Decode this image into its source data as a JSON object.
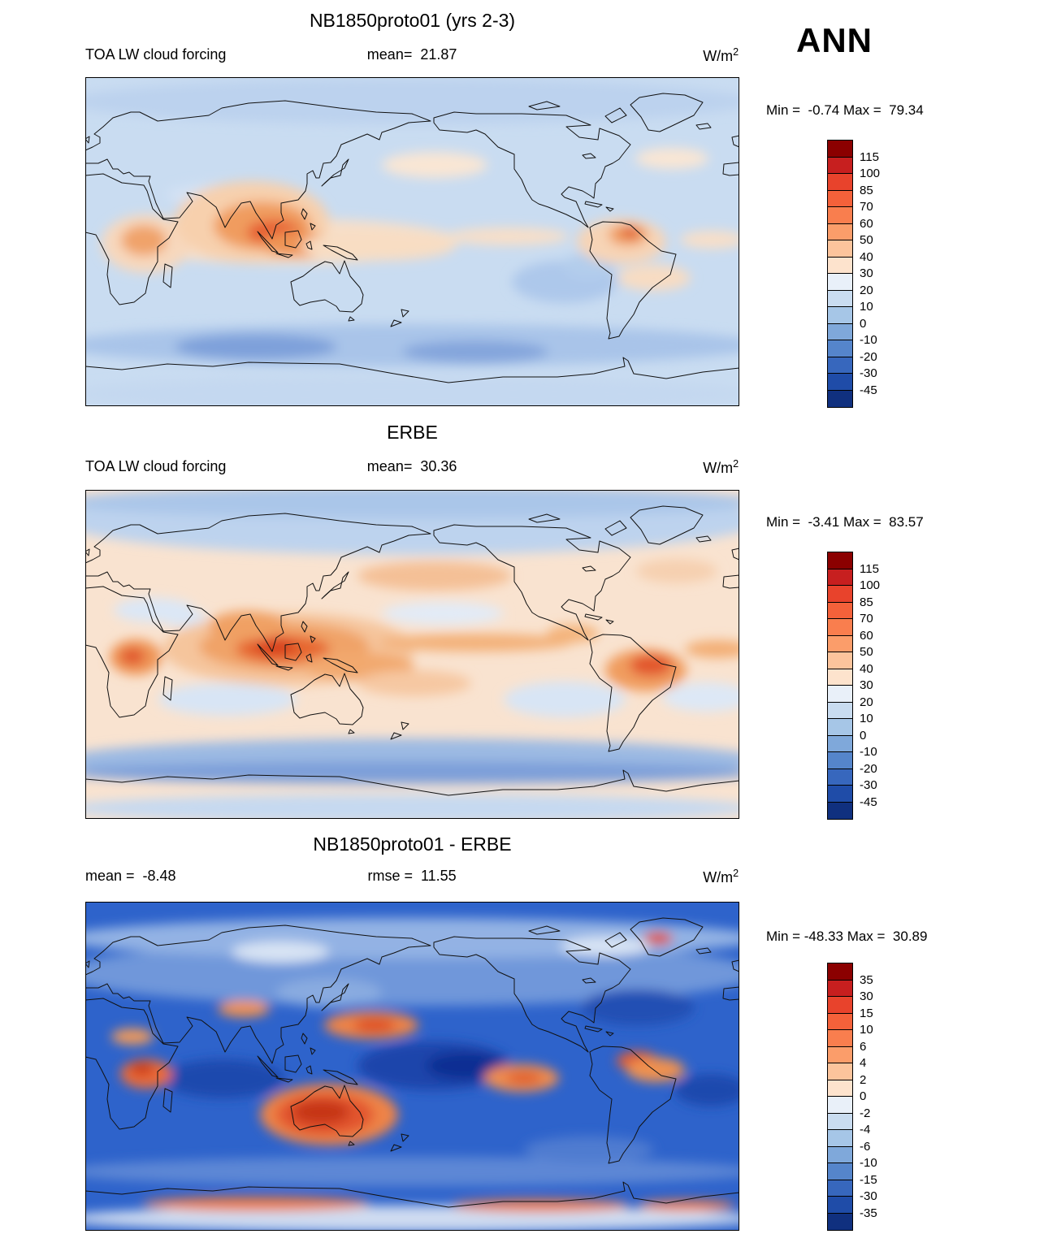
{
  "page": {
    "season_label": "ANN"
  },
  "panels": [
    {
      "id": "model",
      "title": "NB1850proto01 (yrs 2-3)",
      "left_label": "TOA LW cloud forcing",
      "center_label": "mean=  21.87",
      "units": "W/m",
      "units_exp": "2",
      "stats": "Min =  -0.74 Max =  79.34",
      "colorbar": {
        "labels": [
          "115",
          "100",
          "85",
          "70",
          "60",
          "50",
          "40",
          "30",
          "20",
          "10",
          "0",
          "-10",
          "-20",
          "-30",
          "-45"
        ],
        "colors": [
          "#8b0000",
          "#c71f1f",
          "#e8432c",
          "#f4613a",
          "#f97e4e",
          "#fb9d6a",
          "#fcc49c",
          "#fde3cd",
          "#e9f0f9",
          "#c9dcf0",
          "#a6c6e7",
          "#7fa8da",
          "#5585cb",
          "#3767bd",
          "#1f4ca8",
          "#10307f"
        ]
      },
      "map": {
        "base": "#c9dcf1",
        "blobs": [
          [
            400,
            30,
            420,
            28,
            "#bcd2ee"
          ],
          [
            400,
            390,
            420,
            22,
            "#c4d8f0"
          ],
          [
            400,
            330,
            430,
            26,
            "#a9c4e9"
          ],
          [
            210,
            332,
            100,
            16,
            "#7ea0da"
          ],
          [
            480,
            338,
            90,
            14,
            "#84a5dc"
          ],
          [
            590,
            252,
            65,
            26,
            "#adc8eb"
          ],
          [
            620,
            232,
            32,
            16,
            "#b3cdec"
          ],
          [
            160,
            145,
            60,
            14,
            "#d4e2f4"
          ],
          [
            250,
            202,
            210,
            28,
            "#f7dfc9"
          ],
          [
            75,
            205,
            55,
            36,
            "#f7d8bd"
          ],
          [
            72,
            201,
            28,
            19,
            "#f0a36a"
          ],
          [
            205,
            178,
            95,
            50,
            "#f7d0ad"
          ],
          [
            218,
            183,
            60,
            30,
            "#f09c5f"
          ],
          [
            232,
            191,
            33,
            15,
            "#e65f31"
          ],
          [
            262,
            206,
            45,
            16,
            "#ef9455"
          ],
          [
            360,
            208,
            95,
            18,
            "#f8ddc3"
          ],
          [
            520,
            196,
            75,
            11,
            "#f8dfc8"
          ],
          [
            660,
            202,
            55,
            28,
            "#f7d4b6"
          ],
          [
            668,
            194,
            24,
            13,
            "#ef9a5c"
          ],
          [
            671,
            191,
            10,
            6,
            "#dd4f2a"
          ],
          [
            700,
            247,
            45,
            16,
            "#f8dcc2"
          ],
          [
            772,
            200,
            40,
            11,
            "#f8dfc8"
          ],
          [
            430,
            108,
            65,
            16,
            "#f9e6d4"
          ],
          [
            722,
            100,
            45,
            13,
            "#f9e6d4"
          ]
        ]
      }
    },
    {
      "id": "obs",
      "title": "ERBE",
      "left_label": "TOA LW cloud forcing",
      "center_label": "mean=  30.36",
      "units": "W/m",
      "units_exp": "2",
      "stats": "Min =  -3.41 Max =  83.57",
      "colorbar": {
        "labels": [
          "115",
          "100",
          "85",
          "70",
          "60",
          "50",
          "40",
          "30",
          "20",
          "10",
          "0",
          "-10",
          "-20",
          "-30",
          "-45"
        ],
        "colors": [
          "#8b0000",
          "#c71f1f",
          "#e8432c",
          "#f4613a",
          "#f97e4e",
          "#fb9d6a",
          "#fcc49c",
          "#fde3cd",
          "#e9f0f9",
          "#c9dcf0",
          "#a6c6e7",
          "#7fa8da",
          "#5585cb",
          "#3767bd",
          "#1f4ca8",
          "#10307f"
        ]
      },
      "map": {
        "base": "#f9e3d0",
        "blobs": [
          [
            400,
            38,
            430,
            42,
            "#bdd3ee"
          ],
          [
            400,
            15,
            430,
            20,
            "#aac6e9"
          ],
          [
            400,
            332,
            430,
            26,
            "#9cbae3"
          ],
          [
            400,
            348,
            430,
            14,
            "#7d9fd9"
          ],
          [
            400,
            392,
            430,
            18,
            "#c6d9f0"
          ],
          [
            175,
            258,
            85,
            20,
            "#d8e5f5"
          ],
          [
            590,
            258,
            75,
            22,
            "#d8e5f5"
          ],
          [
            765,
            255,
            55,
            18,
            "#dde8f6"
          ],
          [
            440,
            152,
            75,
            14,
            "#e2ebf7"
          ],
          [
            85,
            148,
            50,
            15,
            "#dbe7f6"
          ],
          [
            122,
            158,
            28,
            11,
            "#dbe7f6"
          ],
          [
            250,
            196,
            155,
            45,
            "#f5c59c"
          ],
          [
            245,
            193,
            105,
            30,
            "#f0a368"
          ],
          [
            243,
            196,
            58,
            17,
            "#e6662f"
          ],
          [
            233,
            193,
            26,
            10,
            "#d8401f"
          ],
          [
            62,
            206,
            32,
            22,
            "#ef9556"
          ],
          [
            58,
            205,
            15,
            10,
            "#e0552c"
          ],
          [
            200,
            167,
            48,
            18,
            "#f0a064"
          ],
          [
            335,
            217,
            70,
            17,
            "#f2a96e"
          ],
          [
            405,
            238,
            70,
            16,
            "#f6c8a2"
          ],
          [
            480,
            188,
            120,
            11,
            "#f3b078"
          ],
          [
            690,
            222,
            50,
            26,
            "#f09c5e"
          ],
          [
            696,
            216,
            26,
            13,
            "#e2542b"
          ],
          [
            778,
            196,
            40,
            11,
            "#f3ae74"
          ],
          [
            600,
            177,
            32,
            11,
            "#f4b47c"
          ],
          [
            430,
            106,
            95,
            18,
            "#f4c096"
          ],
          [
            728,
            100,
            50,
            15,
            "#f6d0b0"
          ]
        ]
      }
    },
    {
      "id": "difference",
      "title": "NB1850proto01 - ERBE",
      "left_label": "mean =  -8.48",
      "center_label": "rmse =  11.55",
      "units": "W/m",
      "units_exp": "2",
      "stats": "Min = -48.33 Max =  30.89",
      "colorbar": {
        "labels": [
          "35",
          "30",
          "15",
          "10",
          "6",
          "4",
          "2",
          "0",
          "-2",
          "-4",
          "-6",
          "-10",
          "-15",
          "-30",
          "-35"
        ],
        "colors": [
          "#8b0000",
          "#c71f1f",
          "#e8432c",
          "#f4613a",
          "#f97e4e",
          "#fb9d6a",
          "#fcc49c",
          "#fde3cd",
          "#e9f0f9",
          "#c9dcf0",
          "#a6c6e7",
          "#7fa8da",
          "#5585cb",
          "#3767bd",
          "#1f4ca8",
          "#10307f"
        ]
      },
      "map": {
        "base": "#2e63cb",
        "blobs": [
          [
            400,
            88,
            430,
            40,
            "#6f97da"
          ],
          [
            400,
            45,
            430,
            25,
            "#93b2e4"
          ],
          [
            240,
            62,
            60,
            13,
            "#d8e4f4"
          ],
          [
            640,
            55,
            55,
            12,
            "#d8e4f4"
          ],
          [
            300,
            112,
            65,
            18,
            "#89abe0"
          ],
          [
            400,
            332,
            430,
            18,
            "#5d87d5"
          ],
          [
            620,
            305,
            80,
            16,
            "#4f7bd0"
          ],
          [
            400,
            390,
            430,
            16,
            "#cfdcf1"
          ],
          [
            430,
            202,
            95,
            30,
            "#1a45ab"
          ],
          [
            468,
            202,
            48,
            17,
            "#0e2f93"
          ],
          [
            170,
            218,
            75,
            24,
            "#1d49ae"
          ],
          [
            770,
            232,
            45,
            20,
            "#1d49ae"
          ],
          [
            680,
            130,
            70,
            22,
            "#2050b4"
          ],
          [
            300,
            262,
            85,
            38,
            "#ee8347"
          ],
          [
            295,
            262,
            60,
            26,
            "#e2542d"
          ],
          [
            290,
            259,
            35,
            15,
            "#c63413"
          ],
          [
            352,
            152,
            58,
            17,
            "#ee8347"
          ],
          [
            356,
            152,
            26,
            9,
            "#dd5026"
          ],
          [
            75,
            212,
            32,
            18,
            "#ea6c3a"
          ],
          [
            70,
            206,
            15,
            8,
            "#cc3a16"
          ],
          [
            58,
            166,
            26,
            10,
            "#f09a5a"
          ],
          [
            680,
            196,
            26,
            12,
            "#e55b30"
          ],
          [
            702,
            207,
            36,
            15,
            "#ef9150"
          ],
          [
            705,
            45,
            18,
            8,
            "#dd4b28"
          ],
          [
            195,
            132,
            32,
            10,
            "#ef9150"
          ],
          [
            537,
            217,
            46,
            17,
            "#ef8c50"
          ],
          [
            540,
            217,
            22,
            8,
            "#e05e2f"
          ],
          [
            210,
            372,
            140,
            9,
            "#ec7c44"
          ],
          [
            560,
            374,
            110,
            8,
            "#ec7c44"
          ],
          [
            740,
            374,
            60,
            7,
            "#ec7c44"
          ]
        ]
      }
    }
  ],
  "chart_data": [
    {
      "type": "heatmap",
      "title": "NB1850proto01 (yrs 2-3)",
      "variable": "TOA LW cloud forcing",
      "season": "ANN",
      "units": "W/m^2",
      "projection": "global lat-lon, 0-360E, 90S-90N",
      "mean": 21.87,
      "min": -0.74,
      "max": 79.34,
      "contour_levels": [
        -45,
        -30,
        -20,
        -10,
        0,
        10,
        20,
        30,
        40,
        50,
        60,
        70,
        85,
        100,
        115
      ],
      "legend_position": "right"
    },
    {
      "type": "heatmap",
      "title": "ERBE",
      "variable": "TOA LW cloud forcing",
      "season": "ANN",
      "units": "W/m^2",
      "projection": "global lat-lon, 0-360E, 90S-90N",
      "mean": 30.36,
      "min": -3.41,
      "max": 83.57,
      "contour_levels": [
        -45,
        -30,
        -20,
        -10,
        0,
        10,
        20,
        30,
        40,
        50,
        60,
        70,
        85,
        100,
        115
      ],
      "legend_position": "right"
    },
    {
      "type": "heatmap",
      "title": "NB1850proto01 - ERBE",
      "variable": "TOA LW cloud forcing difference",
      "season": "ANN",
      "units": "W/m^2",
      "projection": "global lat-lon, 0-360E, 90S-90N",
      "mean": -8.48,
      "rmse": 11.55,
      "min": -48.33,
      "max": 30.89,
      "contour_levels": [
        -35,
        -30,
        -15,
        -10,
        -6,
        -4,
        -2,
        0,
        2,
        4,
        6,
        10,
        15,
        30,
        35
      ],
      "legend_position": "right"
    }
  ]
}
